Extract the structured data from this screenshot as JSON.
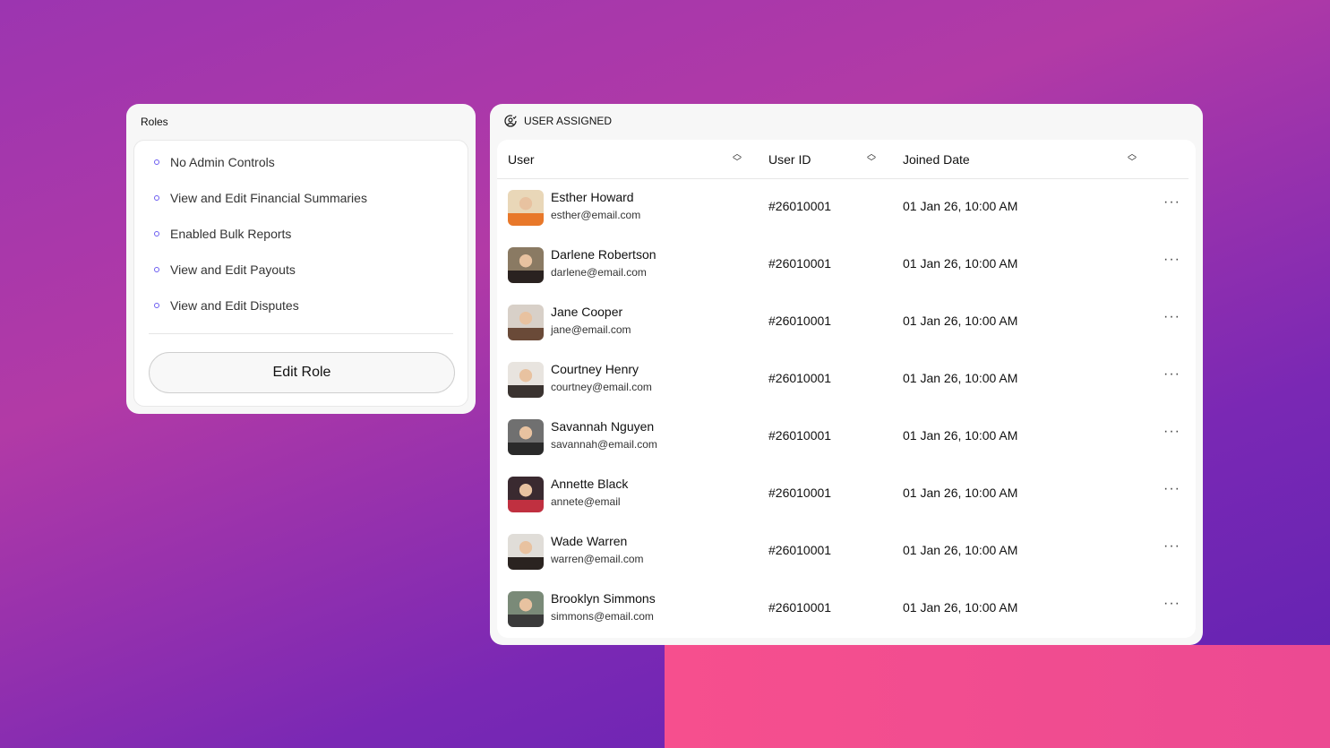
{
  "roles": {
    "title": "Roles",
    "items": [
      "No Admin Controls",
      "View and Edit Financial Summaries",
      "Enabled Bulk Reports",
      "View and Edit Payouts",
      "View and Edit Disputes"
    ],
    "edit_label": "Edit Role"
  },
  "users": {
    "title": "USER ASSIGNED",
    "title_icon": "user-check-icon",
    "columns": [
      "User",
      "User ID",
      "Joined Date"
    ],
    "rows": [
      {
        "name": "Esther Howard",
        "email": "esther@email.com",
        "id": "#26010001",
        "joined": "01 Jan 26, 10:00 AM"
      },
      {
        "name": "Darlene Robertson",
        "email": "darlene@email.com",
        "id": "#26010001",
        "joined": "01 Jan 26, 10:00 AM"
      },
      {
        "name": "Jane Cooper",
        "email": "jane@email.com",
        "id": "#26010001",
        "joined": "01 Jan 26, 10:00 AM"
      },
      {
        "name": "Courtney Henry",
        "email": "courtney@email.com",
        "id": "#26010001",
        "joined": "01 Jan 26, 10:00 AM"
      },
      {
        "name": "Savannah Nguyen",
        "email": "savannah@email.com",
        "id": "#26010001",
        "joined": "01 Jan 26, 10:00 AM"
      },
      {
        "name": "Annette Black",
        "email": "annete@email",
        "id": "#26010001",
        "joined": "01 Jan 26, 10:00 AM"
      },
      {
        "name": "Wade Warren",
        "email": "warren@email.com",
        "id": "#26010001",
        "joined": "01 Jan 26, 10:00 AM"
      },
      {
        "name": "Brooklyn Simmons",
        "email": "simmons@email.com",
        "id": "#26010001",
        "joined": "01 Jan 26, 10:00 AM"
      }
    ],
    "more_label": "···"
  },
  "colors": {
    "accent": "#6b5cf0"
  }
}
